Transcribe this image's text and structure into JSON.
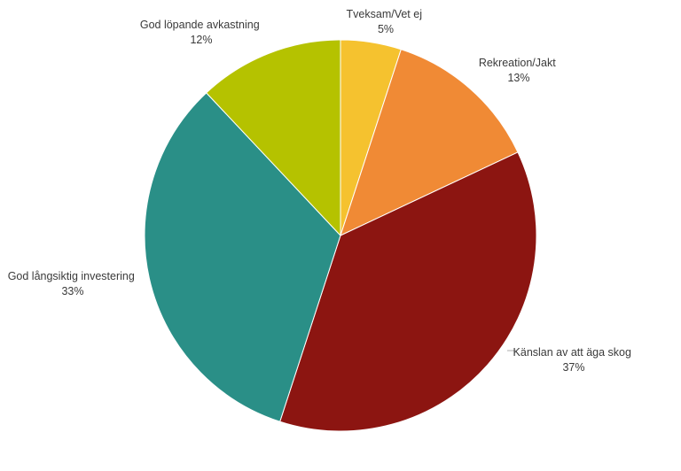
{
  "chart_data": {
    "type": "pie",
    "title": "",
    "series": [
      {
        "values": [
          5,
          13,
          37,
          33,
          12
        ],
        "colors": [
          "#F5C22F",
          "#F08A35",
          "#8C1511",
          "#2A8F87",
          "#B5C200"
        ]
      }
    ],
    "categories": [
      "Tveksam/Vet ej",
      "Rekreation/Jakt",
      "Känslan av att äga skog",
      "God långsiktig investering",
      "God löpande avkastning"
    ],
    "percent_labels": [
      "5%",
      "13%",
      "37%",
      "33%",
      "12%"
    ],
    "start_angle": "12 o'clock",
    "direction": "clockwise",
    "legend": "none"
  }
}
